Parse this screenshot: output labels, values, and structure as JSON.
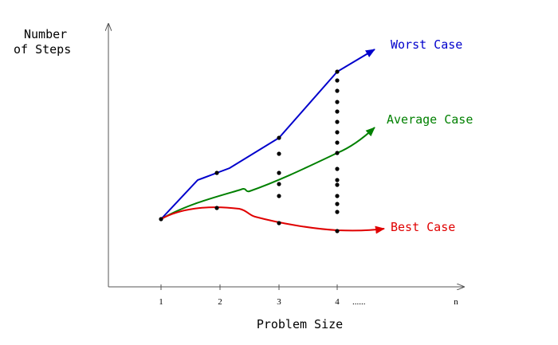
{
  "chart_data": {
    "type": "line",
    "ylabel_lines": [
      "Number",
      "of Steps"
    ],
    "xlabel": "Problem Size",
    "x_ticks": [
      "1",
      "2",
      "3",
      "4"
    ],
    "x_ellipsis": "......",
    "x_end_label": "n",
    "colors": {
      "axis": "#555555",
      "dots": "#000000"
    },
    "series": [
      {
        "name": "Worst Case",
        "color": "#0000cc"
      },
      {
        "name": "Average Case",
        "color": "#008000"
      },
      {
        "name": "Best Case",
        "color": "#e00000"
      }
    ]
  }
}
